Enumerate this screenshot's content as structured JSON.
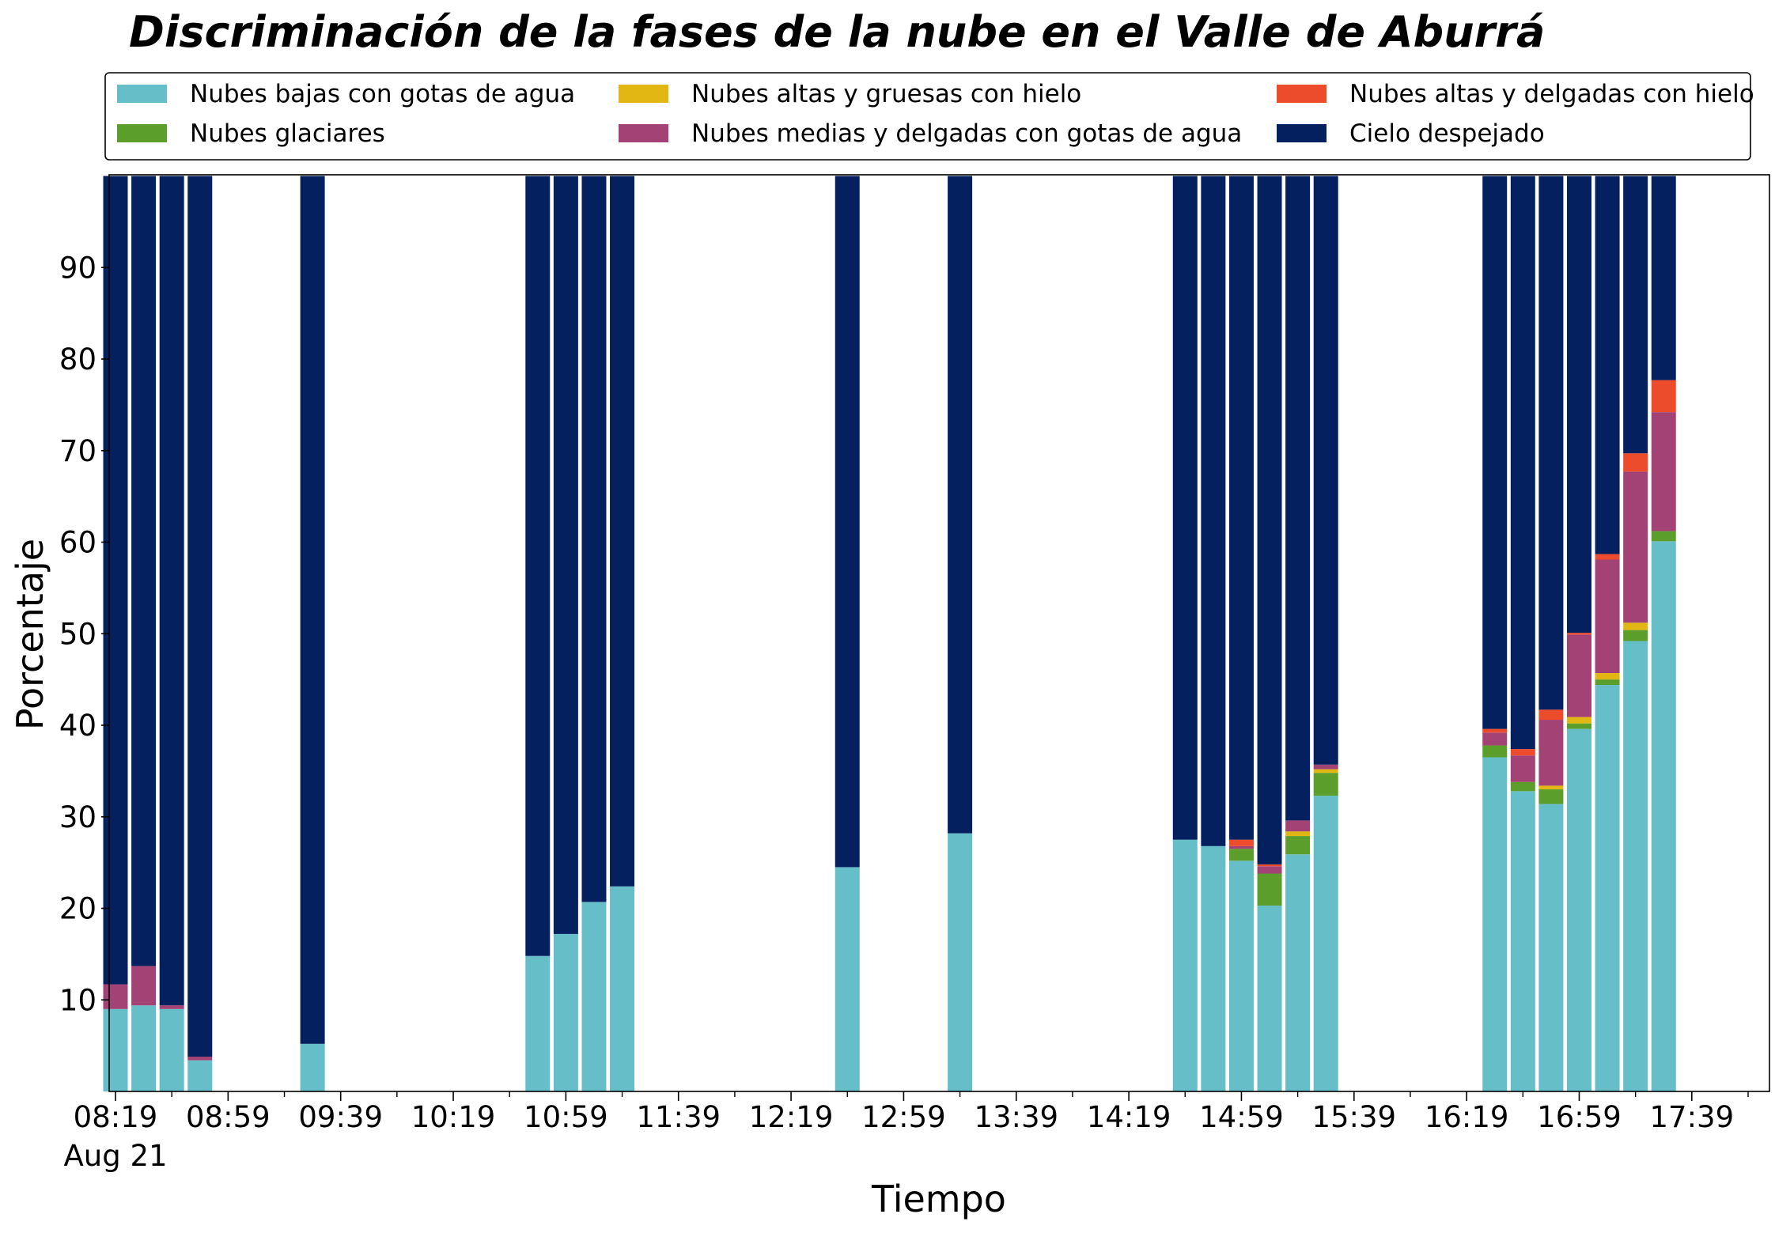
{
  "chart_data": {
    "type": "bar",
    "stacked": true,
    "title": "Discriminación de la fases de la nube en el Valle de Aburrá",
    "xlabel": "Tiempo",
    "ylabel": "Porcentaje",
    "ylim": [
      0,
      100
    ],
    "yticks": [
      10,
      20,
      30,
      40,
      50,
      60,
      70,
      80,
      90
    ],
    "xlim": [
      "08:19",
      "17:59"
    ],
    "xtick_labels": [
      "08:19",
      "08:59",
      "09:39",
      "10:19",
      "10:59",
      "11:39",
      "12:19",
      "12:59",
      "13:39",
      "14:19",
      "14:59",
      "15:39",
      "16:19",
      "16:59",
      "17:39"
    ],
    "x_date_label": "Aug 21",
    "grid": false,
    "legend_position": "top, above plot (3 columns)",
    "series": [
      {
        "name": "Nubes bajas con gotas de agua",
        "color": "#66bfc8"
      },
      {
        "name": "Nubes glaciares",
        "color": "#5c9e2b"
      },
      {
        "name": "Nubes altas y gruesas con hielo",
        "color": "#e2b613"
      },
      {
        "name": "Nubes medias y delgadas con gotas de agua",
        "color": "#a24275"
      },
      {
        "name": "Nubes altas y delgadas con hielo",
        "color": "#ec4b2c"
      },
      {
        "name": "Cielo despejado",
        "color": "#05205e"
      }
    ],
    "x": [
      "08:19",
      "08:29",
      "08:39",
      "08:49",
      "09:29",
      "10:49",
      "10:59",
      "11:09",
      "11:19",
      "12:39",
      "13:19",
      "14:39",
      "14:49",
      "14:59",
      "15:09",
      "15:19",
      "15:29",
      "16:29",
      "16:39",
      "16:49",
      "16:59",
      "17:09",
      "17:19",
      "17:29"
    ],
    "values": [
      [
        9.0,
        0,
        0,
        2.7,
        0,
        88.3
      ],
      [
        9.4,
        0,
        0,
        4.3,
        0,
        86.3
      ],
      [
        9.0,
        0,
        0,
        0.4,
        0,
        90.6
      ],
      [
        3.4,
        0,
        0,
        0.4,
        0,
        96.2
      ],
      [
        5.2,
        0,
        0,
        0,
        0,
        94.8
      ],
      [
        14.8,
        0,
        0,
        0,
        0,
        85.2
      ],
      [
        17.2,
        0,
        0,
        0,
        0,
        82.8
      ],
      [
        20.7,
        0,
        0,
        0,
        0,
        79.3
      ],
      [
        22.4,
        0,
        0,
        0,
        0,
        77.6
      ],
      [
        24.5,
        0,
        0,
        0,
        0,
        75.5
      ],
      [
        28.2,
        0,
        0,
        0,
        0,
        71.8
      ],
      [
        27.5,
        0,
        0,
        0,
        0,
        72.5
      ],
      [
        26.8,
        0,
        0,
        0,
        0,
        73.2
      ],
      [
        25.2,
        1.3,
        0,
        0.3,
        0.7,
        72.5
      ],
      [
        20.3,
        3.5,
        0,
        0.8,
        0.2,
        75.2
      ],
      [
        25.9,
        2.0,
        0.5,
        1.2,
        0,
        70.4
      ],
      [
        32.3,
        2.5,
        0.4,
        0.5,
        0,
        64.3
      ],
      [
        36.5,
        1.3,
        0,
        1.4,
        0.4,
        60.4
      ],
      [
        32.8,
        1.0,
        0,
        2.9,
        0.7,
        62.6
      ],
      [
        31.4,
        1.6,
        0.4,
        7.2,
        1.1,
        58.3
      ],
      [
        39.6,
        0.6,
        0.7,
        9.0,
        0.2,
        49.9
      ],
      [
        44.4,
        0.6,
        0.7,
        12.4,
        0.6,
        41.3
      ],
      [
        49.2,
        1.2,
        0.8,
        16.5,
        2.0,
        30.3
      ],
      [
        60.1,
        1.1,
        0,
        13.0,
        3.5,
        22.3
      ]
    ]
  }
}
